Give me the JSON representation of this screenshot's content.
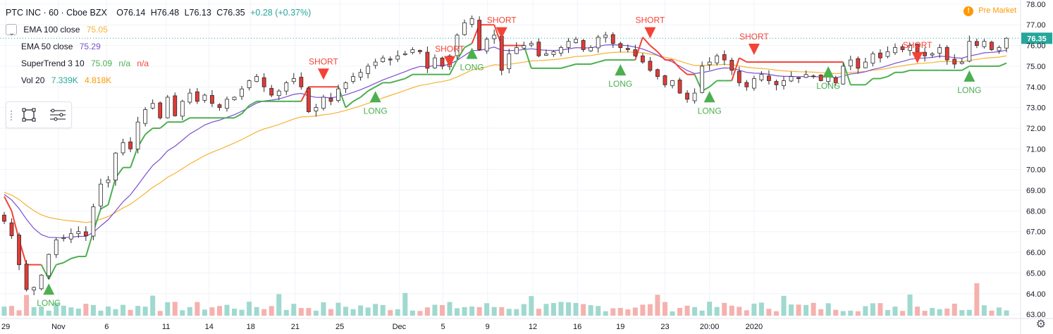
{
  "header": {
    "symbol": "PTC INC · 60 · Cboe BZX",
    "open": "O76.14",
    "high": "H76.48",
    "low": "L76.13",
    "close": "C76.35",
    "change": "+0.28 (+0.37%)"
  },
  "indicators": [
    {
      "label": "EMA 100 close",
      "value": "75.05",
      "color": "#f5b335"
    },
    {
      "label": "EMA 50 close",
      "value": "75.29",
      "color": "#7b4fcf"
    },
    {
      "label": "SuperTrend 3 10",
      "value": "75.09",
      "extra1": "n/a",
      "extra2": "n/a",
      "color": "#4caf50",
      "color2": "#f44336"
    },
    {
      "label": "Vol 20",
      "value": "7.339K",
      "extra1": "4.818K",
      "color": "#26a69a",
      "color2": "#ff9800"
    }
  ],
  "pre_market_label": "Pre Market",
  "pre_market_icon": "!",
  "settings_icon": "gear-icon",
  "chart_data": {
    "type": "candlestick",
    "y_axis": {
      "min": 62.8,
      "max": 78.2,
      "ticks": [
        63.0,
        64.0,
        65.0,
        66.0,
        67.0,
        68.0,
        69.0,
        70.0,
        71.0,
        72.0,
        73.0,
        74.0,
        75.0,
        76.0,
        77.0,
        78.0
      ],
      "tick_labels": [
        "63.00",
        "64.00",
        "65.00",
        "66.00",
        "67.00",
        "68.00",
        "69.00",
        "70.00",
        "71.00",
        "72.00",
        "73.00",
        "74.00",
        "75.00",
        "76.00",
        "77.00",
        "78.00"
      ]
    },
    "last_price": "76.35",
    "x_tick_labels": [
      {
        "label": "29",
        "t": 0.2
      },
      {
        "label": "Nov",
        "t": 7.3
      },
      {
        "label": "6",
        "t": 13.8
      },
      {
        "label": "11",
        "t": 21.8
      },
      {
        "label": "14",
        "t": 27.6
      },
      {
        "label": "18",
        "t": 33.2
      },
      {
        "label": "21",
        "t": 39.2
      },
      {
        "label": "25",
        "t": 45.2
      },
      {
        "label": "Dec",
        "t": 53.2
      },
      {
        "label": "5",
        "t": 59.1
      },
      {
        "label": "9",
        "t": 65.1
      },
      {
        "label": "12",
        "t": 71.2
      },
      {
        "label": "16",
        "t": 77.2
      },
      {
        "label": "19",
        "t": 83.0
      },
      {
        "label": "23",
        "t": 89.0
      },
      {
        "label": "20:00",
        "t": 95.0
      },
      {
        "label": "2020",
        "t": 101.0
      }
    ],
    "close": [
      67.5,
      66.8,
      65.4,
      64.2,
      64.3,
      64.9,
      65.9,
      66.6,
      66.7,
      66.9,
      67.0,
      66.8,
      68.2,
      69.3,
      69.5,
      70.8,
      71.3,
      71.0,
      72.3,
      72.9,
      73.2,
      72.5,
      73.5,
      72.6,
      73.3,
      73.7,
      73.3,
      73.6,
      73.2,
      73.0,
      73.4,
      73.5,
      73.9,
      74.3,
      74.5,
      74.0,
      73.6,
      73.8,
      74.2,
      74.4,
      74.0,
      72.8,
      73.0,
      73.5,
      73.3,
      73.9,
      74.2,
      74.5,
      74.7,
      75.0,
      75.2,
      75.4,
      75.3,
      75.5,
      75.6,
      75.8,
      75.7,
      74.9,
      75.4,
      75.0,
      75.5,
      76.5,
      77.1,
      77.3,
      75.8,
      76.3,
      76.5,
      74.8,
      75.6,
      75.9,
      76.0,
      76.1,
      75.5,
      75.6,
      75.7,
      75.9,
      76.2,
      76.3,
      75.8,
      75.9,
      76.4,
      76.5,
      76.1,
      75.9,
      75.8,
      75.5,
      75.2,
      74.8,
      74.5,
      74.1,
      74.3,
      73.7,
      73.4,
      73.7,
      75.0,
      75.2,
      75.5,
      75.3,
      74.8,
      74.2,
      74.0,
      74.4,
      74.6,
      74.3,
      74.1,
      74.3,
      74.5,
      74.4,
      74.6,
      74.5,
      74.3,
      74.5,
      74.2,
      75.0,
      75.3,
      74.9,
      75.2,
      75.6,
      75.4,
      75.7,
      75.9,
      75.8,
      76.0,
      75.7,
      75.5,
      75.6,
      75.9,
      75.3,
      75.1,
      75.2,
      76.2,
      76.0,
      76.2,
      75.8,
      75.9,
      76.35
    ],
    "ema50_end": 75.29,
    "ema100_end": 75.05,
    "supertrend_end": 75.09,
    "volume_end": "7.339K",
    "volume_ma_end": "4.818K",
    "signals": [
      {
        "type": "LONG",
        "t": 6
      },
      {
        "type": "SHORT",
        "t": 43
      },
      {
        "type": "LONG",
        "t": 50
      },
      {
        "type": "SHORT",
        "t": 60
      },
      {
        "type": "LONG",
        "t": 63
      },
      {
        "type": "SHORT",
        "t": 67
      },
      {
        "type": "LONG",
        "t": 83
      },
      {
        "type": "SHORT",
        "t": 87
      },
      {
        "type": "LONG",
        "t": 95
      },
      {
        "type": "SHORT",
        "t": 101
      },
      {
        "type": "LONG",
        "t": 111
      },
      {
        "type": "SHORT",
        "t": 123
      },
      {
        "type": "LONG",
        "t": 130
      }
    ],
    "signal_labels": {
      "long": "LONG",
      "short": "SHORT"
    }
  },
  "colors": {
    "up": "#26a69a",
    "down": "#ef5350",
    "candle_body": "#2b2b2b",
    "grid": "#f0f3fa",
    "axis_text": "#131722",
    "last_price_bg": "#26a69a"
  }
}
